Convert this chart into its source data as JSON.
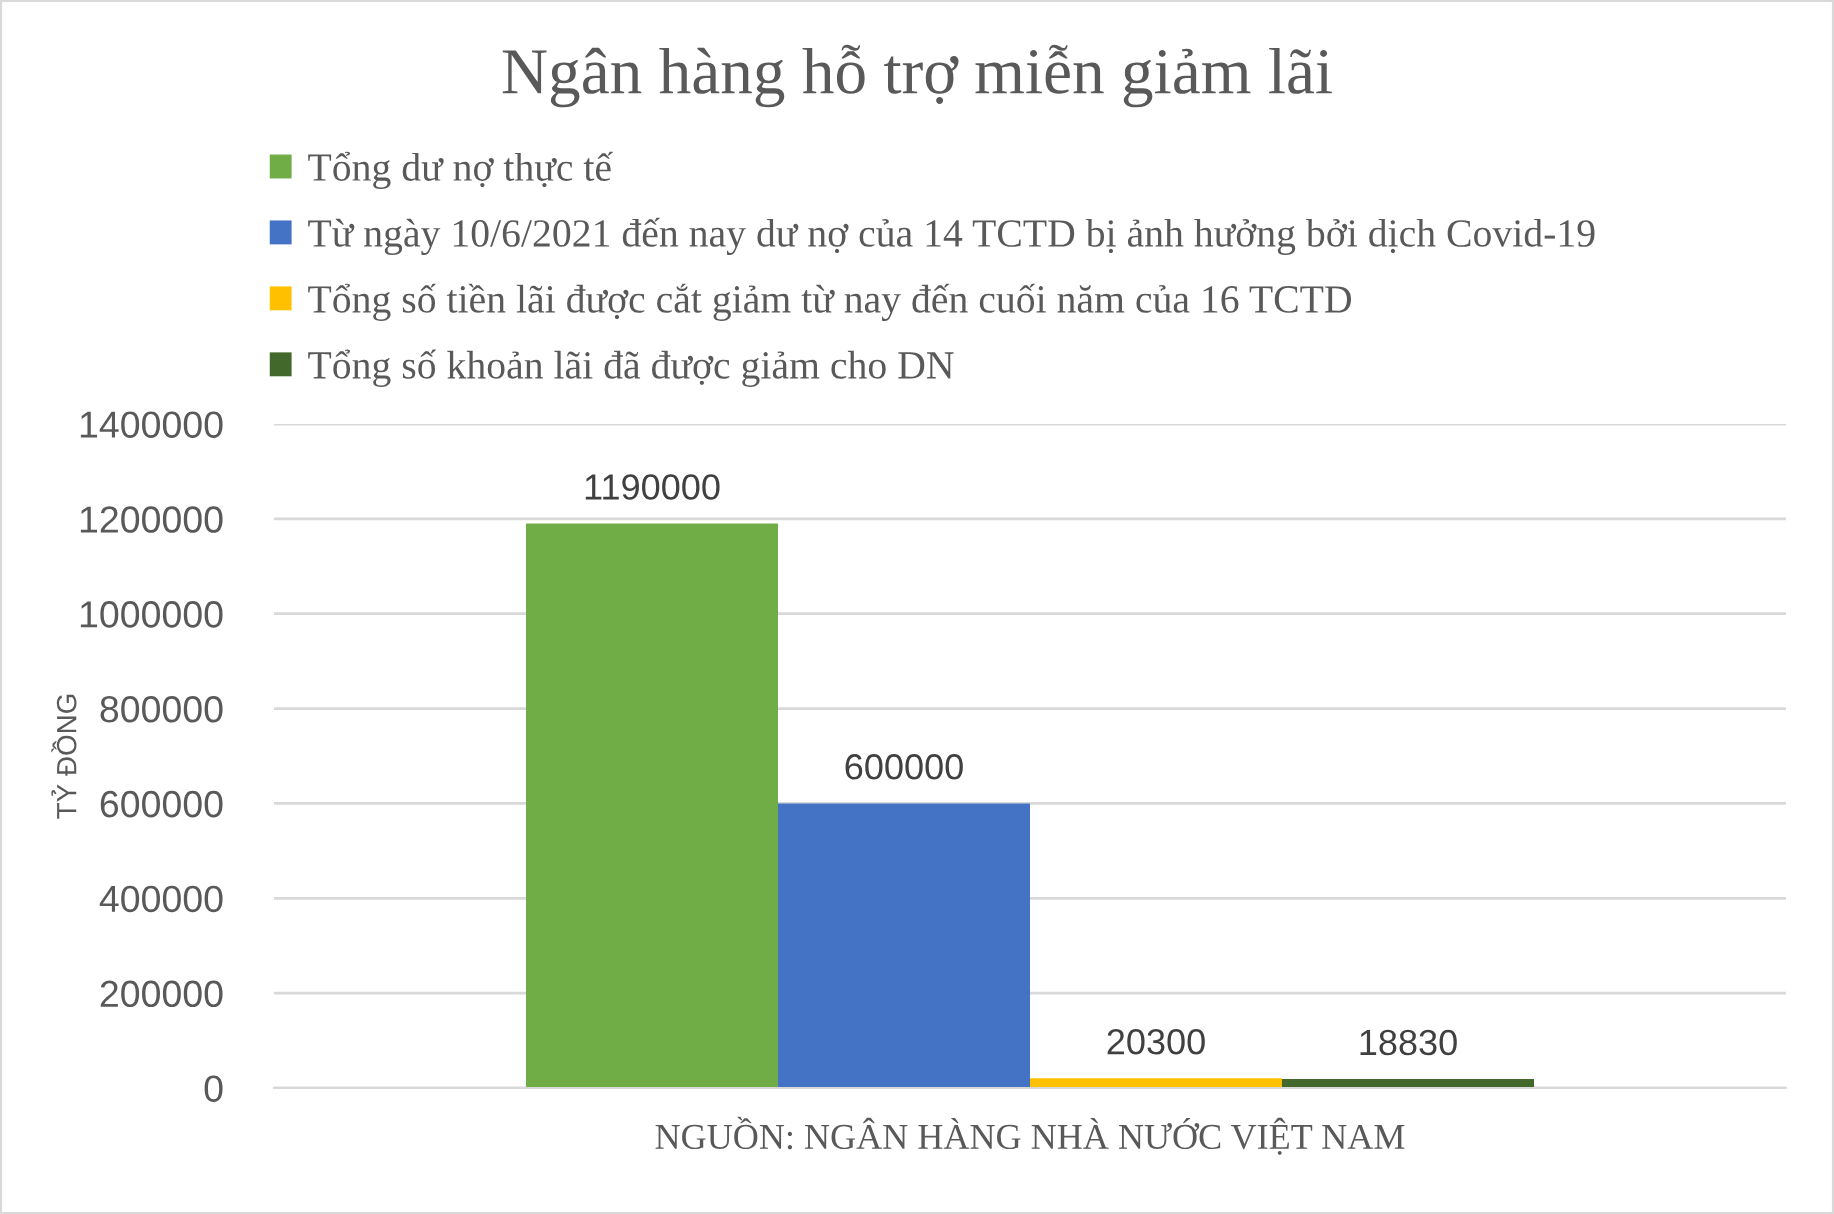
{
  "chart_data": {
    "type": "bar",
    "title": "Ngân hàng hỗ trợ miễn giảm lãi",
    "ylabel": "TỶ ĐỒNG",
    "categories": [
      "NGUỒN: NGÂN HÀNG NHÀ NƯỚC VIỆT NAM"
    ],
    "series": [
      {
        "name": "Tổng dư nợ thực tế",
        "color": "#70ad47",
        "values": [
          1190000
        ]
      },
      {
        "name": "Từ ngày 10/6/2021 đến nay dư nợ của 14 TCTD bị ảnh hưởng bởi dịch Covid-19",
        "color": "#4472c4",
        "values": [
          600000
        ]
      },
      {
        "name": "Tổng số tiền lãi được cắt giảm từ nay đến cuối năm của 16 TCTD",
        "color": "#ffc000",
        "values": [
          20300
        ]
      },
      {
        "name": "Tổng số khoản lãi đã được giảm cho DN",
        "color": "#43682b",
        "values": [
          18830
        ]
      }
    ],
    "ylim": [
      0,
      1400000
    ],
    "yticks": [
      0,
      200000,
      400000,
      600000,
      800000,
      1000000,
      1200000,
      1400000
    ],
    "grid": "y",
    "legend": "top",
    "data_labels": true
  }
}
